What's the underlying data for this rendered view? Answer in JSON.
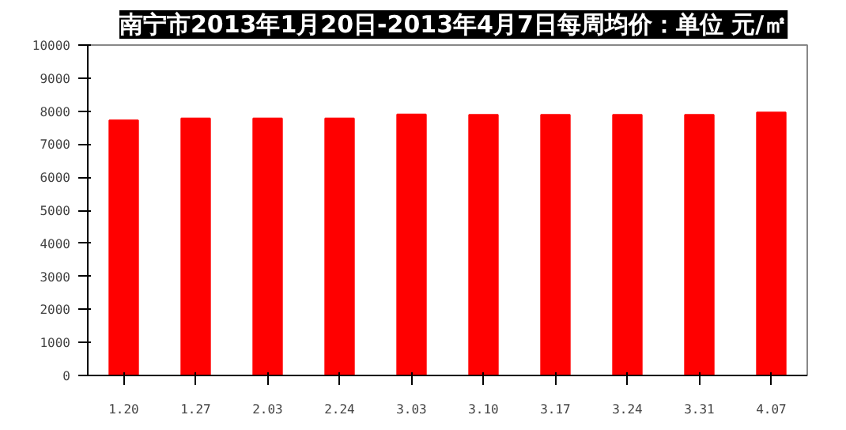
{
  "chart_data": {
    "type": "bar",
    "title": "南宁市2013年1月20日-2013年4月7日每周均价：单位 元/㎡",
    "categories": [
      "1.20",
      "1.27",
      "2.03",
      "2.24",
      "3.03",
      "3.10",
      "3.17",
      "3.24",
      "3.31",
      "4.07"
    ],
    "values": [
      7720,
      7780,
      7780,
      7780,
      7900,
      7890,
      7890,
      7890,
      7890,
      7960
    ],
    "color": "#ff0000",
    "ylim": [
      0,
      10000
    ],
    "yticks": [
      0,
      1000,
      2000,
      3000,
      4000,
      5000,
      6000,
      7000,
      8000,
      9000,
      10000
    ],
    "grid": false
  }
}
